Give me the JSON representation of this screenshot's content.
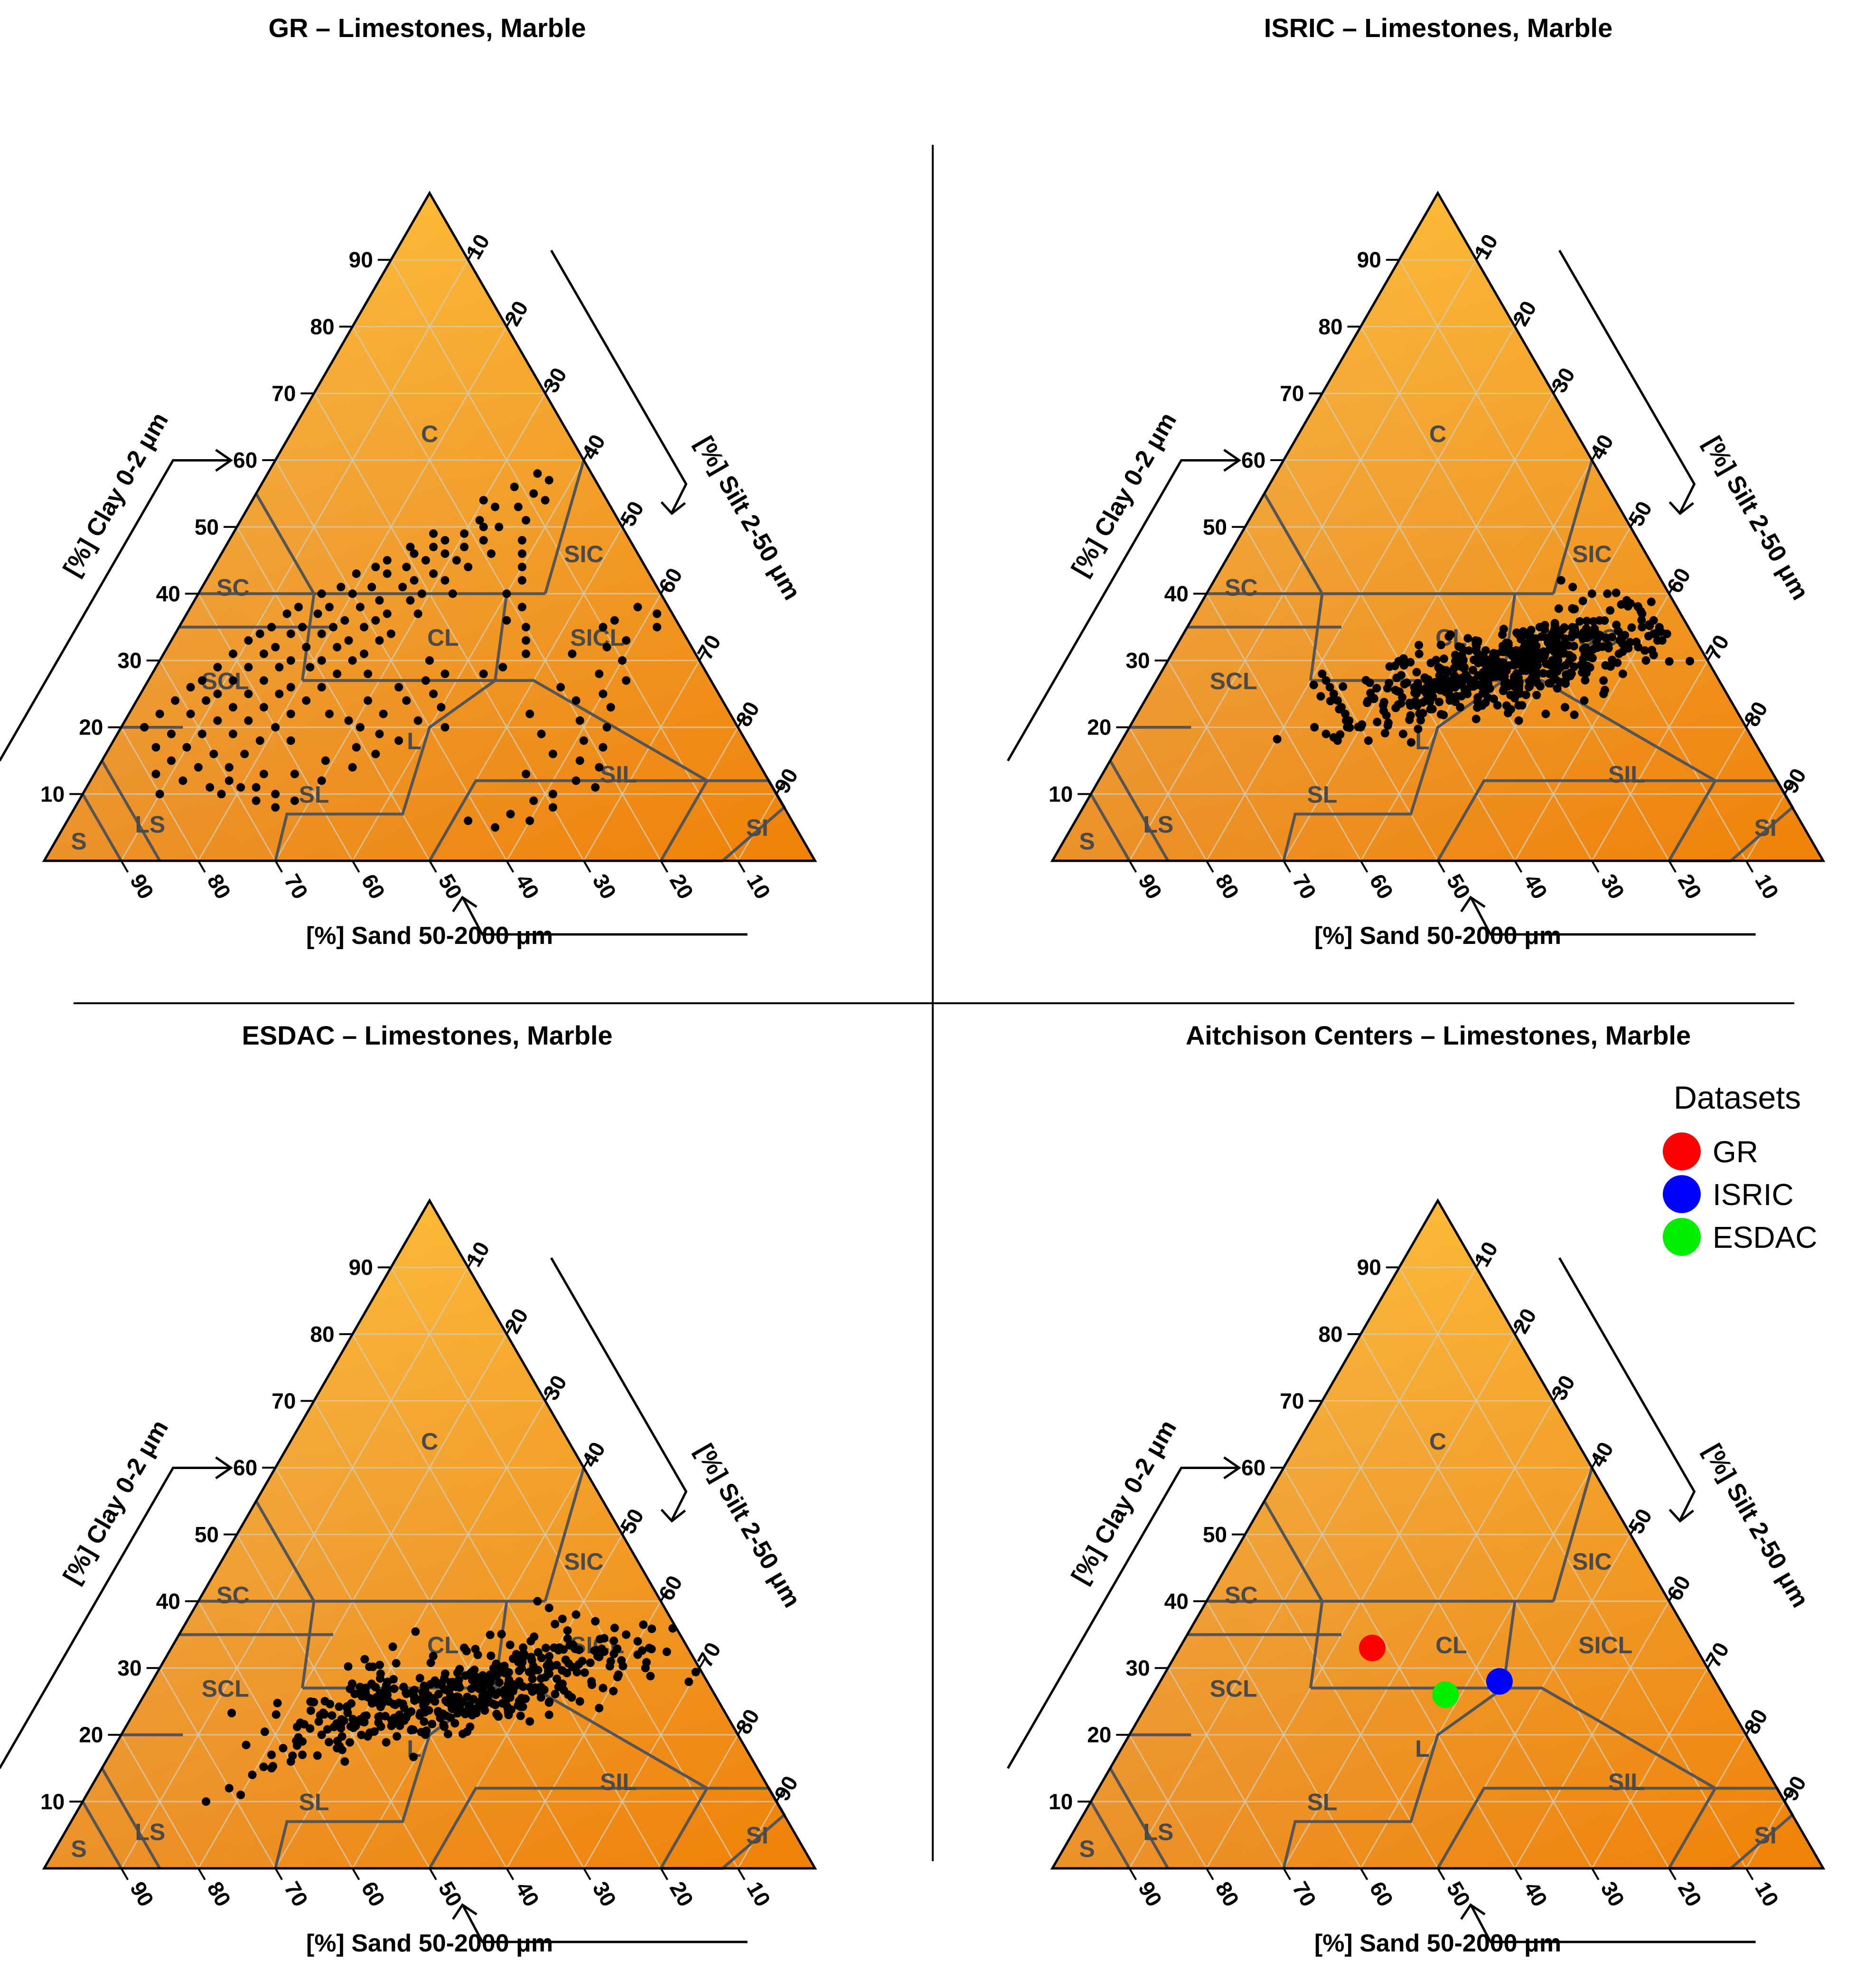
{
  "colors": {
    "triangle_top": "#fcb936",
    "triangle_left": "#e6a85e",
    "triangle_right": "#ef8208",
    "gridline": "#d7c9a8",
    "class_boundary": "#555555",
    "class_label": "#4a4a4a",
    "point": "#000000",
    "separator": "#000000"
  },
  "common": {
    "clay_axis_label": "[%] Clay 0-2 μm",
    "silt_axis_label": "[%] Silt 2-50 μm",
    "sand_axis_label": "[%] Sand 50-2000 μm",
    "ticks": [
      "10",
      "20",
      "30",
      "40",
      "50",
      "60",
      "70",
      "80",
      "90"
    ],
    "texture_classes": [
      {
        "code": "C",
        "clay": 64,
        "silt": 18
      },
      {
        "code": "SIC",
        "clay": 46,
        "silt": 47
      },
      {
        "code": "SC",
        "clay": 41,
        "silt": 4
      },
      {
        "code": "SICL",
        "clay": 33.5,
        "silt": 55
      },
      {
        "code": "CL",
        "clay": 33.5,
        "silt": 35
      },
      {
        "code": "SCL",
        "clay": 27,
        "silt": 10
      },
      {
        "code": "L",
        "clay": 18,
        "silt": 39
      },
      {
        "code": "SIL",
        "clay": 13,
        "silt": 68
      },
      {
        "code": "SL",
        "clay": 10,
        "silt": 30
      },
      {
        "code": "LS",
        "clay": 5.5,
        "silt": 11
      },
      {
        "code": "SI",
        "clay": 5,
        "silt": 90
      },
      {
        "code": "S",
        "clay": 3,
        "silt": 3
      }
    ]
  },
  "chart_data": [
    {
      "type": "scatter",
      "subtype": "ternary",
      "title": "GR – Limestones, Marble",
      "axes": {
        "a": "Clay",
        "b": "Silt",
        "c": "Sand"
      },
      "points_clay_silt": [
        [
          58,
          35
        ],
        [
          57,
          37
        ],
        [
          56,
          33
        ],
        [
          55,
          36
        ],
        [
          54,
          30
        ],
        [
          54,
          38
        ],
        [
          53,
          32
        ],
        [
          53,
          35
        ],
        [
          51,
          37
        ],
        [
          51,
          31
        ],
        [
          50,
          32
        ],
        [
          50,
          34
        ],
        [
          49,
          26
        ],
        [
          49,
          30
        ],
        [
          48,
          28
        ],
        [
          48,
          33
        ],
        [
          47,
          24
        ],
        [
          47,
          27
        ],
        [
          47,
          31
        ],
        [
          46,
          35
        ],
        [
          46,
          25
        ],
        [
          46,
          29
        ],
        [
          45,
          22
        ],
        [
          45,
          27
        ],
        [
          45,
          31
        ],
        [
          44,
          33
        ],
        [
          44,
          21
        ],
        [
          44,
          25
        ],
        [
          43,
          29
        ],
        [
          43,
          19
        ],
        [
          43,
          23
        ],
        [
          42,
          27
        ],
        [
          42,
          31
        ],
        [
          41,
          18
        ],
        [
          41,
          22
        ],
        [
          41,
          26
        ],
        [
          40,
          29
        ],
        [
          40,
          33
        ],
        [
          40,
          16
        ],
        [
          40,
          20
        ],
        [
          39,
          24
        ],
        [
          39,
          28
        ],
        [
          38,
          14
        ],
        [
          38,
          18
        ],
        [
          38,
          22
        ],
        [
          37,
          26
        ],
        [
          37,
          30
        ],
        [
          37,
          13
        ],
        [
          37,
          17
        ],
        [
          36,
          21
        ],
        [
          36,
          25
        ],
        [
          35,
          12
        ],
        [
          35,
          16
        ],
        [
          35,
          20
        ],
        [
          35,
          24
        ],
        [
          34,
          28
        ],
        [
          34,
          11
        ],
        [
          34,
          15
        ],
        [
          34,
          19
        ],
        [
          33,
          23
        ],
        [
          33,
          27
        ],
        [
          33,
          10
        ],
        [
          32,
          14
        ],
        [
          32,
          18
        ],
        [
          32,
          22
        ],
        [
          31,
          26
        ],
        [
          31,
          9
        ],
        [
          31,
          13
        ],
        [
          30,
          17
        ],
        [
          30,
          21
        ],
        [
          30,
          25
        ],
        [
          29,
          8
        ],
        [
          29,
          12
        ],
        [
          29,
          16
        ],
        [
          29,
          20
        ],
        [
          28,
          24
        ],
        [
          28,
          28
        ],
        [
          27,
          7
        ],
        [
          27,
          11
        ],
        [
          27,
          15
        ],
        [
          26,
          19
        ],
        [
          26,
          23
        ],
        [
          26,
          6
        ],
        [
          25,
          10
        ],
        [
          25,
          14
        ],
        [
          25,
          18
        ],
        [
          24,
          22
        ],
        [
          24,
          5
        ],
        [
          24,
          9
        ],
        [
          23,
          13
        ],
        [
          23,
          17
        ],
        [
          22,
          21
        ],
        [
          22,
          4
        ],
        [
          22,
          8
        ],
        [
          21,
          12
        ],
        [
          21,
          16
        ],
        [
          20,
          20
        ],
        [
          20,
          3
        ],
        [
          19,
          7
        ],
        [
          19,
          11
        ],
        [
          19,
          15
        ],
        [
          18,
          19
        ],
        [
          18,
          23
        ],
        [
          17,
          6
        ],
        [
          17,
          10
        ],
        [
          16,
          14
        ],
        [
          16,
          18
        ],
        [
          15,
          9
        ],
        [
          14,
          13
        ],
        [
          14,
          17
        ],
        [
          13,
          8
        ],
        [
          12,
          12
        ],
        [
          11,
          16
        ],
        [
          10,
          10
        ],
        [
          48,
          38
        ],
        [
          46,
          39
        ],
        [
          44,
          40
        ],
        [
          42,
          41
        ],
        [
          40,
          40
        ],
        [
          38,
          43
        ],
        [
          36,
          42
        ],
        [
          35,
          45
        ],
        [
          33,
          46
        ],
        [
          31,
          47
        ],
        [
          29,
          45
        ],
        [
          28,
          43
        ],
        [
          30,
          35
        ],
        [
          28,
          38
        ],
        [
          27,
          36
        ],
        [
          26,
          33
        ],
        [
          25,
          38
        ],
        [
          24,
          35
        ],
        [
          23,
          40
        ],
        [
          22,
          33
        ],
        [
          21,
          38
        ],
        [
          20,
          42
        ],
        [
          24,
          30
        ],
        [
          22,
          26
        ],
        [
          21,
          29
        ],
        [
          20,
          31
        ],
        [
          19,
          34
        ],
        [
          18,
          37
        ],
        [
          17,
          32
        ],
        [
          16,
          35
        ],
        [
          15,
          29
        ],
        [
          14,
          33
        ],
        [
          13,
          26
        ],
        [
          12,
          30
        ],
        [
          11,
          22
        ],
        [
          10,
          25
        ],
        [
          9,
          28
        ],
        [
          13,
          22
        ],
        [
          12,
          18
        ],
        [
          11,
          20
        ],
        [
          9,
          23
        ],
        [
          8,
          26
        ],
        [
          10,
          18
        ],
        [
          38,
          58
        ],
        [
          37,
          61
        ],
        [
          36,
          56
        ],
        [
          35,
          62
        ],
        [
          33,
          59
        ],
        [
          32,
          57
        ],
        [
          30,
          60
        ],
        [
          28,
          58
        ],
        [
          27,
          62
        ],
        [
          25,
          60
        ],
        [
          24,
          57
        ],
        [
          23,
          62
        ],
        [
          21,
          59
        ],
        [
          20,
          63
        ],
        [
          18,
          61
        ],
        [
          17,
          64
        ],
        [
          15,
          62
        ],
        [
          14,
          65
        ],
        [
          12,
          63
        ],
        [
          11,
          66
        ],
        [
          10,
          61
        ],
        [
          35,
          55
        ],
        [
          31,
          53
        ],
        [
          26,
          54
        ],
        [
          22,
          52
        ],
        [
          19,
          55
        ],
        [
          16,
          58
        ],
        [
          13,
          56
        ],
        [
          9,
          59
        ],
        [
          8,
          62
        ],
        [
          7,
          57
        ],
        [
          6,
          60
        ],
        [
          5,
          56
        ],
        [
          6,
          52
        ]
      ]
    },
    {
      "type": "scatter",
      "subtype": "ternary",
      "title": "ISRIC – Limestones, Marble",
      "axes": {
        "a": "Clay",
        "b": "Silt",
        "c": "Sand"
      },
      "cloud": {
        "center_clay": 29,
        "center_silt": 45,
        "spread_clay": 4,
        "spread_silt": 7,
        "n": 520,
        "seed": 11
      },
      "points_clay_silt": [
        [
          42,
          45
        ],
        [
          41,
          47
        ],
        [
          40,
          50
        ],
        [
          40,
          52
        ],
        [
          39,
          55
        ],
        [
          38,
          57
        ],
        [
          37,
          58
        ],
        [
          36,
          60
        ],
        [
          35,
          59
        ],
        [
          34,
          61
        ],
        [
          33,
          62
        ],
        [
          32,
          60
        ],
        [
          31,
          58
        ],
        [
          30,
          62
        ],
        [
          28,
          60
        ],
        [
          27,
          58
        ],
        [
          25,
          59
        ],
        [
          24,
          57
        ],
        [
          23,
          55
        ],
        [
          22,
          53
        ],
        [
          21,
          50
        ],
        [
          20,
          30
        ],
        [
          21,
          28
        ],
        [
          22,
          27
        ],
        [
          23,
          26
        ],
        [
          24,
          25
        ],
        [
          25,
          24
        ],
        [
          26,
          23
        ],
        [
          27,
          22
        ],
        [
          28,
          21
        ],
        [
          20,
          24
        ],
        [
          19,
          26
        ],
        [
          18,
          28
        ],
        [
          18,
          32
        ],
        [
          19,
          36
        ]
      ]
    },
    {
      "type": "scatter",
      "subtype": "ternary",
      "title": "ESDAC – Limestones, Marble",
      "axes": {
        "a": "Clay",
        "b": "Silt",
        "c": "Sand"
      },
      "cloud": {
        "center_clay": 26,
        "center_silt": 40,
        "spread_clay": 4,
        "spread_silt": 8,
        "n": 420,
        "seed": 29
      },
      "points_clay_silt": [
        [
          40,
          44
        ],
        [
          39,
          46
        ],
        [
          38,
          50
        ],
        [
          37,
          53
        ],
        [
          36,
          56
        ],
        [
          35,
          58
        ],
        [
          34,
          60
        ],
        [
          33,
          62
        ],
        [
          32,
          61
        ],
        [
          31,
          58
        ],
        [
          30,
          63
        ],
        [
          29,
          60
        ],
        [
          28,
          57
        ],
        [
          27,
          59
        ],
        [
          26,
          55
        ],
        [
          25,
          57
        ],
        [
          24,
          60
        ],
        [
          23,
          54
        ],
        [
          22,
          52
        ],
        [
          21,
          28
        ],
        [
          20,
          26
        ],
        [
          19,
          24
        ],
        [
          18,
          22
        ],
        [
          17,
          21
        ],
        [
          17,
          25
        ],
        [
          18,
          29
        ],
        [
          16,
          24
        ],
        [
          15,
          22
        ],
        [
          14,
          20
        ],
        [
          16,
          31
        ],
        [
          10,
          16
        ],
        [
          11,
          20
        ],
        [
          12,
          18
        ]
      ]
    },
    {
      "type": "scatter",
      "subtype": "ternary",
      "title": "Aitchison Centers – Limestones, Marble",
      "axes": {
        "a": "Clay",
        "b": "Silt",
        "c": "Sand"
      },
      "legend": {
        "title": "Datasets",
        "position": "top-right"
      },
      "series": [
        {
          "name": "GR",
          "color": "#ff0000",
          "clay": 33,
          "silt": 25
        },
        {
          "name": "ISRIC",
          "color": "#0000ff",
          "clay": 28,
          "silt": 44
        },
        {
          "name": "ESDAC",
          "color": "#00ee00",
          "clay": 26,
          "silt": 38
        }
      ]
    }
  ]
}
